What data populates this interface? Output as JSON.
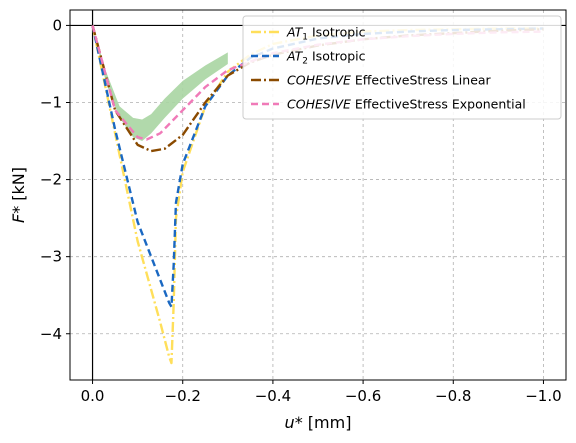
{
  "chart_data": {
    "type": "line",
    "xlabel": "u* [mm]",
    "ylabel": "F* [kN]",
    "xlim": [
      0.05,
      -1.05
    ],
    "ylim": [
      0.2,
      -4.6
    ],
    "xticks": [
      0.0,
      -0.2,
      -0.4,
      -0.6,
      -0.8,
      -1.0
    ],
    "xtick_labels": [
      "0.0",
      "−0.2",
      "−0.4",
      "−0.6",
      "−0.8",
      "−1.0"
    ],
    "yticks": [
      0,
      -1,
      -2,
      -3,
      -4
    ],
    "ytick_labels": [
      "0",
      "−1",
      "−2",
      "−3",
      "−4"
    ],
    "grid": true,
    "legend_position": "top-right",
    "band": {
      "color": "#a8d5a2",
      "upper": [
        [
          0.0,
          0.0
        ],
        [
          -0.03,
          -0.75
        ],
        [
          -0.06,
          -1.2
        ],
        [
          -0.09,
          -1.45
        ],
        [
          -0.11,
          -1.5
        ],
        [
          -0.13,
          -1.4
        ],
        [
          -0.16,
          -1.2
        ],
        [
          -0.2,
          -0.95
        ],
        [
          -0.25,
          -0.7
        ],
        [
          -0.3,
          -0.5
        ]
      ],
      "lower": [
        [
          0.0,
          0.0
        ],
        [
          -0.03,
          -0.6
        ],
        [
          -0.06,
          -1.05
        ],
        [
          -0.09,
          -1.2
        ],
        [
          -0.11,
          -1.22
        ],
        [
          -0.13,
          -1.15
        ],
        [
          -0.16,
          -0.95
        ],
        [
          -0.2,
          -0.72
        ],
        [
          -0.25,
          -0.52
        ],
        [
          -0.3,
          -0.35
        ]
      ]
    },
    "series": [
      {
        "name": "AT1 Isotropic",
        "name_main": "AT",
        "name_sub": "1",
        "name_rest": " Isotropic",
        "color": "#ffdf5a",
        "dash": "10,3,2,3",
        "points": [
          [
            0.0,
            0.0
          ],
          [
            -0.05,
            -1.4
          ],
          [
            -0.1,
            -2.8
          ],
          [
            -0.15,
            -3.85
          ],
          [
            -0.17,
            -4.3
          ],
          [
            -0.175,
            -4.38
          ],
          [
            -0.18,
            -3.6
          ],
          [
            -0.185,
            -2.5
          ],
          [
            -0.2,
            -1.9
          ],
          [
            -0.25,
            -1.05
          ],
          [
            -0.3,
            -0.6
          ],
          [
            -0.35,
            -0.38
          ],
          [
            -0.4,
            -0.24
          ],
          [
            -0.5,
            -0.13
          ],
          [
            -0.6,
            -0.08
          ],
          [
            -0.7,
            -0.06
          ],
          [
            -0.8,
            -0.05
          ],
          [
            -0.9,
            -0.04
          ],
          [
            -1.0,
            -0.04
          ]
        ]
      },
      {
        "name": "AT2 Isotropic",
        "name_main": "AT",
        "name_sub": "2",
        "name_rest": " Isotropic",
        "color": "#1a68c2",
        "dash": "7,4",
        "points": [
          [
            0.0,
            0.0
          ],
          [
            -0.05,
            -1.35
          ],
          [
            -0.1,
            -2.55
          ],
          [
            -0.15,
            -3.3
          ],
          [
            -0.17,
            -3.6
          ],
          [
            -0.175,
            -3.65
          ],
          [
            -0.18,
            -3.1
          ],
          [
            -0.185,
            -2.3
          ],
          [
            -0.2,
            -1.8
          ],
          [
            -0.25,
            -1.05
          ],
          [
            -0.3,
            -0.65
          ],
          [
            -0.35,
            -0.42
          ],
          [
            -0.4,
            -0.3
          ],
          [
            -0.5,
            -0.17
          ],
          [
            -0.6,
            -0.11
          ],
          [
            -0.7,
            -0.08
          ],
          [
            -0.8,
            -0.06
          ],
          [
            -0.9,
            -0.05
          ],
          [
            -1.0,
            -0.04
          ]
        ]
      },
      {
        "name": "COHESIVE EffectiveStress Linear",
        "name_main": "COHESIVE",
        "name_sub": "",
        "name_rest": " EffectiveStress Linear",
        "color": "#8a4a00",
        "dash": "10,3,2,3",
        "points": [
          [
            0.0,
            0.0
          ],
          [
            -0.05,
            -1.1
          ],
          [
            -0.1,
            -1.55
          ],
          [
            -0.13,
            -1.63
          ],
          [
            -0.16,
            -1.6
          ],
          [
            -0.2,
            -1.42
          ],
          [
            -0.25,
            -1.0
          ],
          [
            -0.3,
            -0.65
          ],
          [
            -0.35,
            -0.48
          ],
          [
            -0.4,
            -0.38
          ],
          [
            -0.5,
            -0.26
          ],
          [
            -0.6,
            -0.18
          ],
          [
            -0.7,
            -0.13
          ],
          [
            -0.8,
            -0.1
          ],
          [
            -0.9,
            -0.07
          ],
          [
            -1.0,
            -0.05
          ]
        ]
      },
      {
        "name": "COHESIVE EffectiveStress Exponential",
        "name_main": "COHESIVE",
        "name_sub": "",
        "name_rest": " EffectiveStress Exponential",
        "color": "#f07ab8",
        "dash": "7,4",
        "points": [
          [
            0.0,
            0.0
          ],
          [
            -0.05,
            -1.1
          ],
          [
            -0.1,
            -1.45
          ],
          [
            -0.12,
            -1.48
          ],
          [
            -0.15,
            -1.4
          ],
          [
            -0.2,
            -1.1
          ],
          [
            -0.25,
            -0.8
          ],
          [
            -0.3,
            -0.58
          ],
          [
            -0.4,
            -0.36
          ],
          [
            -0.5,
            -0.25
          ],
          [
            -0.6,
            -0.18
          ],
          [
            -0.7,
            -0.14
          ],
          [
            -0.8,
            -0.11
          ],
          [
            -0.9,
            -0.09
          ],
          [
            -1.0,
            -0.08
          ]
        ]
      }
    ]
  }
}
